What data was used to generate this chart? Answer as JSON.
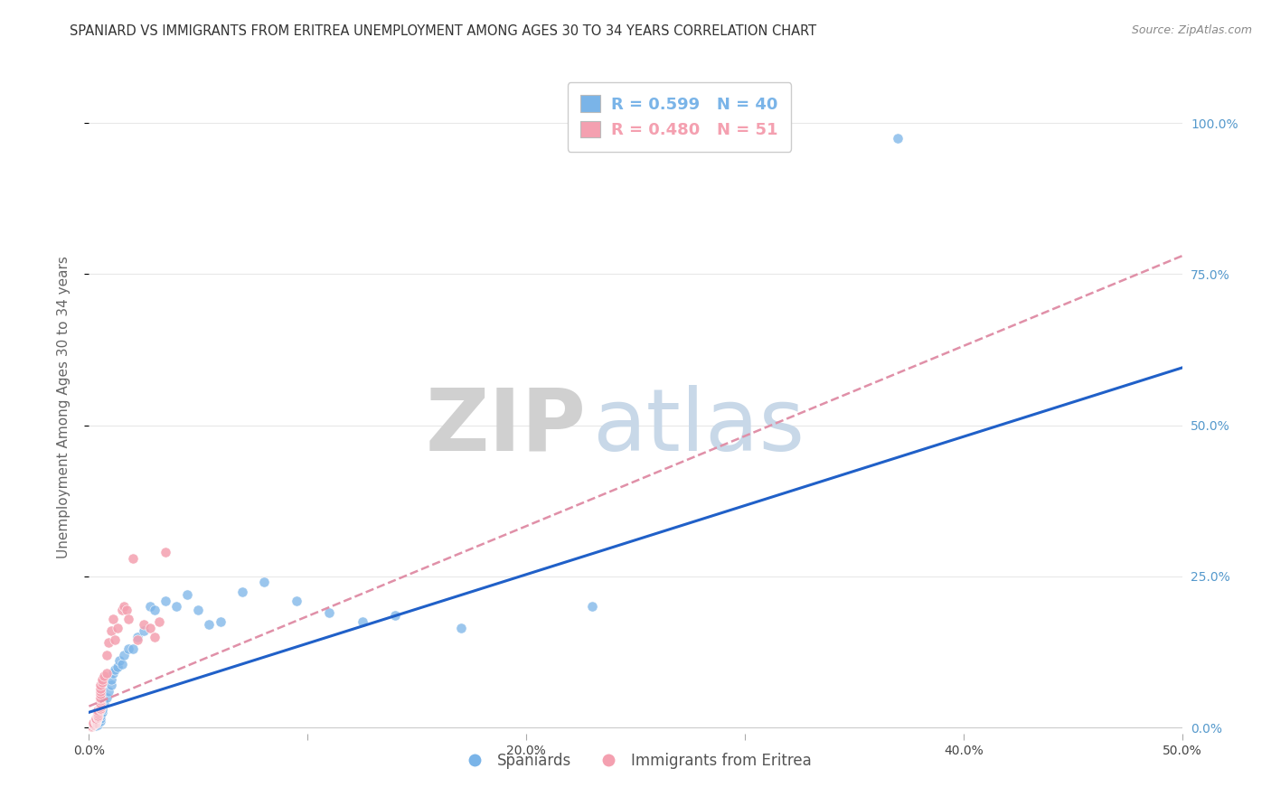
{
  "title": "SPANIARD VS IMMIGRANTS FROM ERITREA UNEMPLOYMENT AMONG AGES 30 TO 34 YEARS CORRELATION CHART",
  "source": "Source: ZipAtlas.com",
  "ylabel": "Unemployment Among Ages 30 to 34 years",
  "xlim": [
    0.0,
    0.5
  ],
  "ylim": [
    -0.01,
    1.07
  ],
  "xticks": [
    0.0,
    0.1,
    0.2,
    0.3,
    0.4,
    0.5
  ],
  "xtick_labels": [
    "0.0%",
    "",
    "20.0%",
    "",
    "40.0%",
    "50.0%"
  ],
  "yticks": [
    0.0,
    0.25,
    0.5,
    0.75,
    1.0
  ],
  "ytick_labels_right": [
    "0.0%",
    "25.0%",
    "50.0%",
    "75.0%",
    "100.0%"
  ],
  "legend_entries": [
    {
      "label": "R = 0.599   N = 40",
      "color": "#7ab4e8"
    },
    {
      "label": "R = 0.480   N = 51",
      "color": "#f4a0b0"
    }
  ],
  "legend_labels_bottom": [
    "Spaniards",
    "Immigrants from Eritrea"
  ],
  "spaniards_x": [
    0.003,
    0.004,
    0.004,
    0.005,
    0.005,
    0.005,
    0.006,
    0.006,
    0.007,
    0.008,
    0.009,
    0.01,
    0.01,
    0.011,
    0.012,
    0.013,
    0.014,
    0.015,
    0.016,
    0.018,
    0.02,
    0.022,
    0.025,
    0.028,
    0.03,
    0.035,
    0.04,
    0.045,
    0.05,
    0.055,
    0.06,
    0.07,
    0.08,
    0.095,
    0.11,
    0.125,
    0.14,
    0.17,
    0.23,
    0.37
  ],
  "spaniards_y": [
    0.003,
    0.005,
    0.008,
    0.01,
    0.015,
    0.02,
    0.025,
    0.03,
    0.04,
    0.05,
    0.06,
    0.07,
    0.08,
    0.09,
    0.095,
    0.1,
    0.11,
    0.105,
    0.12,
    0.13,
    0.13,
    0.15,
    0.16,
    0.2,
    0.195,
    0.21,
    0.2,
    0.22,
    0.195,
    0.17,
    0.175,
    0.225,
    0.24,
    0.21,
    0.19,
    0.175,
    0.185,
    0.165,
    0.2,
    0.975
  ],
  "eritrea_x": [
    0.001,
    0.001,
    0.002,
    0.002,
    0.002,
    0.002,
    0.003,
    0.003,
    0.003,
    0.003,
    0.003,
    0.003,
    0.004,
    0.004,
    0.004,
    0.004,
    0.004,
    0.004,
    0.005,
    0.005,
    0.005,
    0.005,
    0.005,
    0.005,
    0.005,
    0.005,
    0.005,
    0.005,
    0.005,
    0.005,
    0.006,
    0.006,
    0.007,
    0.008,
    0.008,
    0.009,
    0.01,
    0.011,
    0.012,
    0.013,
    0.015,
    0.016,
    0.017,
    0.018,
    0.02,
    0.022,
    0.025,
    0.028,
    0.03,
    0.032,
    0.035
  ],
  "eritrea_y": [
    0.002,
    0.003,
    0.004,
    0.005,
    0.006,
    0.007,
    0.008,
    0.009,
    0.01,
    0.012,
    0.013,
    0.015,
    0.016,
    0.018,
    0.02,
    0.022,
    0.025,
    0.028,
    0.03,
    0.032,
    0.035,
    0.038,
    0.04,
    0.045,
    0.048,
    0.05,
    0.055,
    0.06,
    0.065,
    0.07,
    0.075,
    0.08,
    0.085,
    0.09,
    0.12,
    0.14,
    0.16,
    0.18,
    0.145,
    0.165,
    0.195,
    0.2,
    0.195,
    0.18,
    0.28,
    0.145,
    0.17,
    0.165,
    0.15,
    0.175,
    0.29
  ],
  "sp_line_x0": 0.0,
  "sp_line_y0": 0.025,
  "sp_line_x1": 0.5,
  "sp_line_y1": 0.595,
  "er_line_x0": 0.0,
  "er_line_y0": 0.035,
  "er_line_x1": 0.5,
  "er_line_y1": 0.78,
  "scatter_size": 65,
  "spaniard_color": "#7ab4e8",
  "eritrea_color": "#f4a0b0",
  "spaniard_line_color": "#2060c8",
  "eritrea_line_color": "#e090a8",
  "watermark_zip_color": "#d0d0d0",
  "watermark_atlas_color": "#c8d8e8",
  "background_color": "#ffffff",
  "grid_color": "#e8e8e8",
  "title_fontsize": 10.5,
  "axis_label_fontsize": 11,
  "tick_fontsize": 10,
  "right_tick_color": "#5599cc"
}
